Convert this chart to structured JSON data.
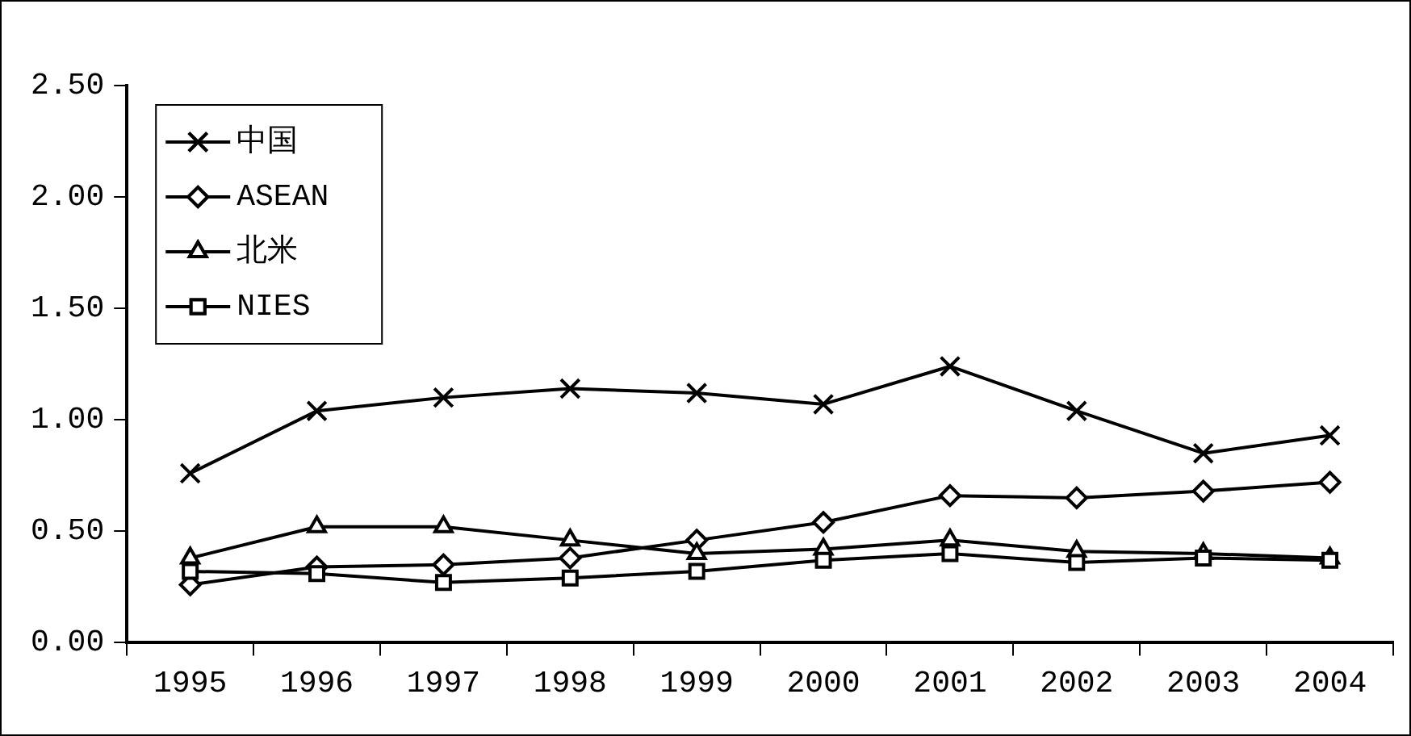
{
  "chart_data": {
    "type": "line",
    "categories": [
      "1995",
      "1996",
      "1997",
      "1998",
      "1999",
      "2000",
      "2001",
      "2002",
      "2003",
      "2004"
    ],
    "series": [
      {
        "name": "中国",
        "color": "#000000",
        "marker": "cross",
        "values": [
          0.76,
          1.04,
          1.1,
          1.14,
          1.12,
          1.07,
          1.24,
          1.04,
          0.85,
          0.93
        ]
      },
      {
        "name": "ASEAN",
        "color": "#000000",
        "marker": "diamond",
        "values": [
          0.26,
          0.34,
          0.35,
          0.38,
          0.46,
          0.54,
          0.66,
          0.65,
          0.68,
          0.72
        ]
      },
      {
        "name": "北米",
        "color": "#000000",
        "marker": "triangle",
        "values": [
          0.38,
          0.52,
          0.52,
          0.46,
          0.4,
          0.42,
          0.46,
          0.41,
          0.4,
          0.38
        ]
      },
      {
        "name": "NIES",
        "color": "#000000",
        "marker": "square",
        "values": [
          0.32,
          0.31,
          0.27,
          0.29,
          0.32,
          0.37,
          0.4,
          0.36,
          0.38,
          0.37
        ]
      }
    ],
    "ylim": [
      0,
      2.5
    ],
    "yticks": [
      {
        "value": 0,
        "label": "0.00"
      },
      {
        "value": 0.5,
        "label": "0.50"
      },
      {
        "value": 1,
        "label": "1.00"
      },
      {
        "value": 1.5,
        "label": "1.50"
      },
      {
        "value": 2,
        "label": "2.00"
      },
      {
        "value": 2.5,
        "label": "2.50"
      }
    ],
    "grid": false,
    "legend": "top left",
    "line_style": "solid"
  }
}
